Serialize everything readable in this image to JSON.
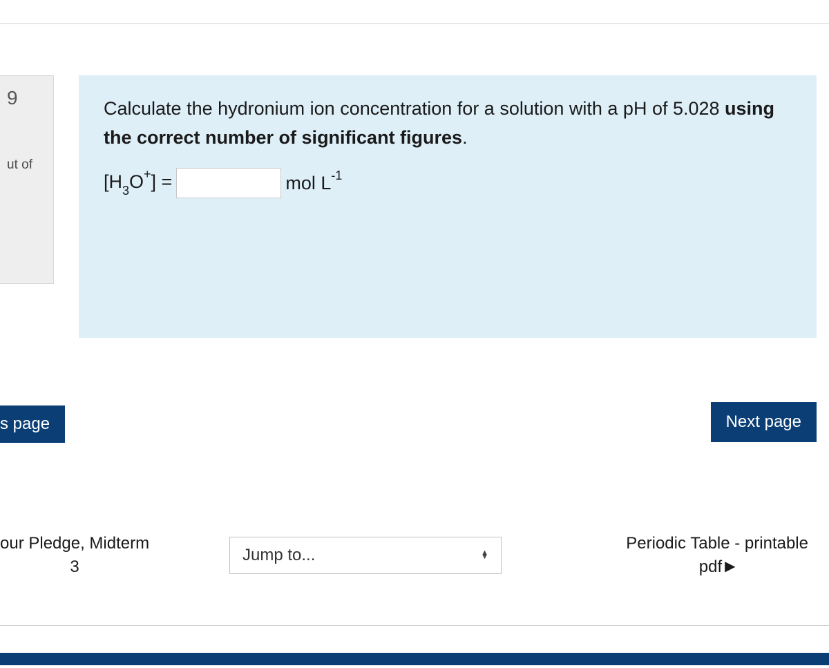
{
  "sidebar": {
    "question_number": "9",
    "out_of_text": "ut of"
  },
  "question": {
    "text_part1": "Calculate the hydronium ion concentration for a solution with a pH of 5.028 ",
    "text_bold": "using the correct number of significant figures",
    "text_end": ".",
    "formula_label": "[H",
    "formula_sub": "3",
    "formula_mid": "O",
    "formula_sup": "+",
    "formula_close": "] = ",
    "unit_text": " mol L",
    "unit_sup": "-1"
  },
  "navigation": {
    "prev_button": "s page",
    "next_button": "Next page",
    "prev_link_line1": "our Pledge, Midterm",
    "prev_link_line2": "3",
    "jump_label": "Jump to...",
    "next_link_line1": "Periodic Table - printable",
    "next_link_line2": "pdf"
  },
  "colors": {
    "primary": "#0b3e75",
    "question_bg": "#deeff8",
    "sidebar_bg": "#eeeeee"
  }
}
